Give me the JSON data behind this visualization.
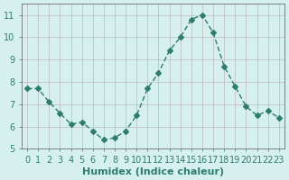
{
  "x": [
    0,
    1,
    2,
    3,
    4,
    5,
    6,
    7,
    8,
    9,
    10,
    11,
    12,
    13,
    14,
    15,
    16,
    17,
    18,
    19,
    20,
    21,
    22,
    23
  ],
  "y": [
    7.7,
    7.7,
    7.1,
    6.6,
    6.1,
    6.2,
    5.8,
    5.4,
    5.5,
    5.8,
    6.5,
    7.7,
    8.4,
    9.4,
    10.0,
    10.8,
    11.0,
    10.2,
    8.7,
    7.8,
    6.9,
    6.5,
    6.7,
    6.4
  ],
  "line_color": "#2e7d6e",
  "marker": "D",
  "marker_size": 3,
  "bg_color": "#d6f0f0",
  "grid_color": "#c0b8b8",
  "title": "",
  "xlabel": "Humidex (Indice chaleur)",
  "ylabel": "",
  "xlim": [
    -0.5,
    23.5
  ],
  "ylim": [
    5.0,
    11.5
  ],
  "yticks": [
    5,
    6,
    7,
    8,
    9,
    10,
    11
  ],
  "xticks": [
    0,
    1,
    2,
    3,
    4,
    5,
    6,
    7,
    8,
    9,
    10,
    11,
    12,
    13,
    14,
    15,
    16,
    17,
    18,
    19,
    20,
    21,
    22,
    23
  ],
  "tick_label_fontsize": 7,
  "xlabel_fontsize": 8,
  "axis_color": "#2e7d6e",
  "spine_color": "#555555"
}
